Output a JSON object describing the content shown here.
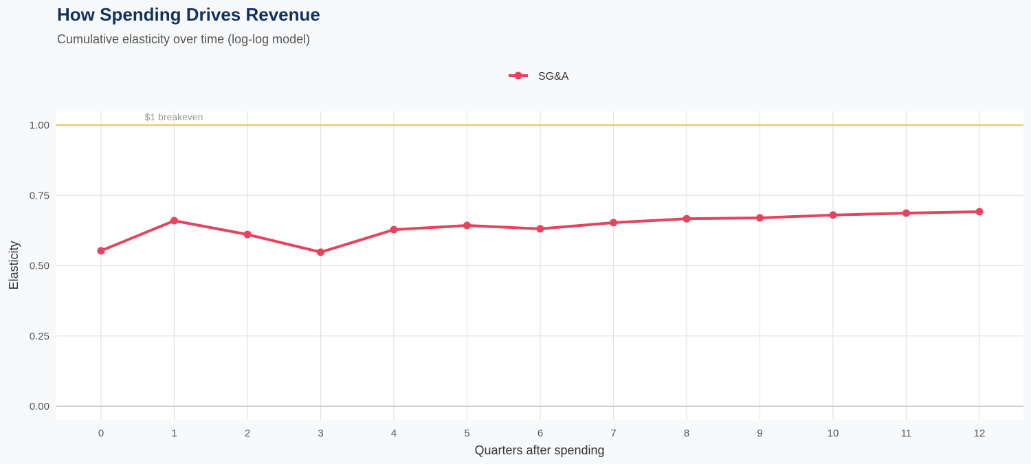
{
  "title": "How Spending Drives Revenue",
  "subtitle": "Cumulative elasticity over time (log-log model)",
  "colors": {
    "series": "#e5435e",
    "reference": "#f2c55c",
    "background": "#f8f9fb",
    "title": "#12325e"
  },
  "chart_data": {
    "type": "line",
    "title": "How Spending Drives Revenue",
    "subtitle": "Cumulative elasticity over time (log-log model)",
    "xlabel": "Quarters after spending",
    "ylabel": "Elasticity",
    "x": [
      0,
      1,
      2,
      3,
      4,
      5,
      6,
      7,
      8,
      9,
      10,
      11,
      12
    ],
    "series": [
      {
        "name": "SG&A",
        "values": [
          0.553,
          0.66,
          0.611,
          0.548,
          0.628,
          0.643,
          0.631,
          0.653,
          0.667,
          0.67,
          0.68,
          0.687,
          0.692
        ]
      }
    ],
    "ylim": [
      -0.05,
      1.05
    ],
    "xlim": [
      -0.6,
      12.6
    ],
    "yticks": [
      "0.00",
      "0.25",
      "0.50",
      "0.75",
      "1.00"
    ],
    "yticks_values": [
      0,
      0.25,
      0.5,
      0.75,
      1.0
    ],
    "xticks": [
      "0",
      "1",
      "2",
      "3",
      "4",
      "5",
      "6",
      "7",
      "8",
      "9",
      "10",
      "11",
      "12"
    ],
    "grid": true,
    "legend": "top",
    "reference_line": {
      "y": 1.0,
      "label": "$1 breakeven"
    }
  }
}
